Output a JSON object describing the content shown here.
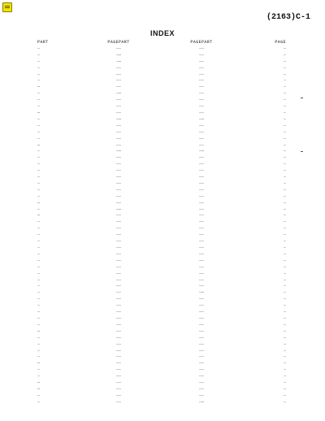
{
  "header": {
    "page_number": "(2163)C-1",
    "title": "INDEX"
  },
  "columns": [
    "PART",
    "PAGE",
    "PART",
    "PAGE",
    "PART",
    "PAGE"
  ],
  "rows": [
    [
      "—",
      "—",
      "—",
      "—",
      "—",
      "—"
    ],
    [
      "—",
      "—",
      "—",
      "—",
      "—",
      "—"
    ],
    [
      "—",
      "—",
      "—",
      "—",
      "—",
      "—"
    ],
    [
      "—",
      "—",
      "—",
      "—",
      "—",
      "—"
    ],
    [
      "—",
      "—",
      "—",
      "—",
      "—",
      "—"
    ],
    [
      "—",
      "—",
      "—",
      "—",
      "—",
      "—"
    ],
    [
      "—",
      "—",
      "—",
      "—",
      "—",
      "—"
    ],
    [
      "—",
      "—",
      "—",
      "—",
      "—",
      "—"
    ],
    [
      "—",
      "—",
      "—",
      "—",
      "—",
      "—"
    ],
    [
      "—",
      "—",
      "—",
      "—",
      "—",
      "—"
    ],
    [
      "—",
      "—",
      "—",
      "—",
      "—",
      "—"
    ],
    [
      "—",
      "—",
      "—",
      "—",
      "—",
      "—"
    ],
    [
      "—",
      "—",
      "—",
      "—",
      "—",
      "—"
    ],
    [
      "—",
      "—",
      "—",
      "—",
      "—",
      "—"
    ],
    [
      "—",
      "—",
      "—",
      "—",
      "—",
      "—"
    ],
    [
      "—",
      "—",
      "—",
      "—",
      "—",
      "—"
    ],
    [
      "—",
      "—",
      "—",
      "—",
      "—",
      "—"
    ],
    [
      "—",
      "—",
      "—",
      "—",
      "—",
      "—"
    ],
    [
      "—",
      "—",
      "—",
      "—",
      "—",
      "—"
    ],
    [
      "—",
      "—",
      "—",
      "—",
      "—",
      "—"
    ],
    [
      "—",
      "—",
      "—",
      "—",
      "—",
      "—"
    ],
    [
      "—",
      "—",
      "—",
      "—",
      "—",
      "—"
    ],
    [
      "—",
      "—",
      "—",
      "—",
      "—",
      "—"
    ],
    [
      "—",
      "—",
      "—",
      "—",
      "—",
      "—"
    ],
    [
      "—",
      "—",
      "—",
      "—",
      "—",
      "—"
    ],
    [
      "—",
      "—",
      "—",
      "—",
      "—",
      "—"
    ],
    [
      "—",
      "—",
      "—",
      "—",
      "—",
      "—"
    ],
    [
      "—",
      "—",
      "—",
      "—",
      "—",
      "—"
    ],
    [
      "—",
      "—",
      "—",
      "—",
      "—",
      "—"
    ],
    [
      "—",
      "—",
      "—",
      "—",
      "—",
      "—"
    ],
    [
      "—",
      "—",
      "—",
      "—",
      "—",
      "—"
    ],
    [
      "—",
      "—",
      "—",
      "—",
      "—",
      "—"
    ],
    [
      "—",
      "—",
      "—",
      "—",
      "—",
      "—"
    ],
    [
      "—",
      "—",
      "—",
      "—",
      "—",
      "—"
    ],
    [
      "—",
      "—",
      "—",
      "—",
      "—",
      "—"
    ],
    [
      "—",
      "—",
      "—",
      "—",
      "—",
      "—"
    ],
    [
      "—",
      "—",
      "—",
      "—",
      "—",
      "—"
    ],
    [
      "—",
      "—",
      "—",
      "—",
      "—",
      "—"
    ],
    [
      "—",
      "—",
      "—",
      "—",
      "—",
      "—"
    ],
    [
      "—",
      "—",
      "—",
      "—",
      "—",
      "—"
    ],
    [
      "—",
      "—",
      "—",
      "—",
      "—",
      "—"
    ],
    [
      "—",
      "—",
      "—",
      "—",
      "—",
      "—"
    ],
    [
      "—",
      "—",
      "—",
      "—",
      "—",
      "—"
    ],
    [
      "—",
      "—",
      "—",
      "—",
      "—",
      "—"
    ],
    [
      "—",
      "—",
      "—",
      "—",
      "—",
      "—"
    ],
    [
      "—",
      "—",
      "—",
      "—",
      "—",
      "—"
    ],
    [
      "—",
      "—",
      "—",
      "—",
      "—",
      "—"
    ],
    [
      "—",
      "—",
      "—",
      "—",
      "—",
      "—"
    ],
    [
      "—",
      "—",
      "—",
      "—",
      "—",
      "—"
    ],
    [
      "—",
      "—",
      "—",
      "—",
      "—",
      "—"
    ],
    [
      "—",
      "—",
      "—",
      "—",
      "—",
      "—"
    ],
    [
      "—",
      "—",
      "—",
      "—",
      "—",
      "—"
    ],
    [
      "—",
      "—",
      "—",
      "—",
      "—",
      "—"
    ],
    [
      "—",
      "—",
      "—",
      "—",
      "—",
      "—"
    ],
    [
      "—",
      "—",
      "—",
      "—",
      "—",
      "—"
    ],
    [
      "—",
      "—",
      "—",
      "—",
      "—",
      "—"
    ]
  ],
  "colors": {
    "link": "#2b3aa8",
    "text": "#777777",
    "note": "#f2e400"
  },
  "icons": {
    "note": "note-icon"
  }
}
